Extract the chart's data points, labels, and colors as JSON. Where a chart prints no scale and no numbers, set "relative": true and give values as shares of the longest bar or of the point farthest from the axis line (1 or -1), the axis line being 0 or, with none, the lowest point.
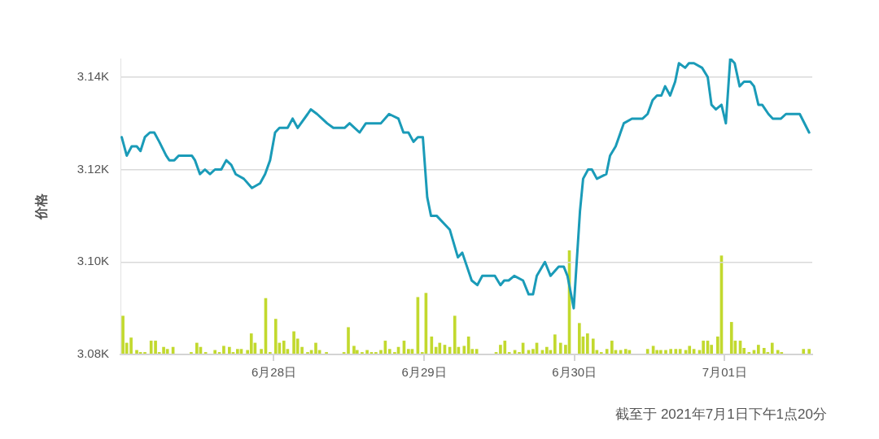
{
  "chart_data": [
    {
      "type": "line",
      "ylabel": "价格",
      "annotations": [
        "截至于 2021年7月1日下午1点20分"
      ],
      "marker": "none",
      "grid": "y",
      "xlim": [
        "2021-06-26T23:30",
        "2021-07-01T14:00"
      ],
      "xticks": [
        {
          "value": "2021-06-28",
          "label": "6月28日"
        },
        {
          "value": "2021-06-29",
          "label": "6月29日"
        },
        {
          "value": "2021-06-30",
          "label": "6月30日"
        },
        {
          "value": "2021-07-01",
          "label": "7月01日"
        }
      ],
      "ylim": [
        3080,
        3144
      ],
      "yticks": [
        {
          "value": 3080,
          "label": "3.08K"
        },
        {
          "value": 3100,
          "label": "3.10K"
        },
        {
          "value": 3120,
          "label": "3.12K"
        },
        {
          "value": 3140,
          "label": "3.14K"
        }
      ],
      "x": [
        "2021-06-26T23:42",
        "2021-06-27T00:30",
        "2021-06-27T01:18",
        "2021-06-27T02:06",
        "2021-06-27T02:42",
        "2021-06-27T03:24",
        "2021-06-27T04:12",
        "2021-06-27T04:54",
        "2021-06-27T05:42",
        "2021-06-27T06:48",
        "2021-06-27T07:18",
        "2021-06-27T08:06",
        "2021-06-27T08:48",
        "2021-06-27T10:06",
        "2021-06-27T10:54",
        "2021-06-27T11:24",
        "2021-06-27T12:12",
        "2021-06-27T13:00",
        "2021-06-27T13:48",
        "2021-06-27T14:36",
        "2021-06-27T15:36",
        "2021-06-27T16:24",
        "2021-06-27T17:12",
        "2021-06-27T17:54",
        "2021-06-27T19:12",
        "2021-06-27T20:30",
        "2021-06-27T21:48",
        "2021-06-27T22:36",
        "2021-06-27T23:24",
        "2021-06-28T00:12",
        "2021-06-28T00:54",
        "2021-06-28T02:12",
        "2021-06-28T03:00",
        "2021-06-28T03:48",
        "2021-06-28T05:24",
        "2021-06-28T05:54",
        "2021-06-28T06:54",
        "2021-06-28T07:42",
        "2021-06-28T08:30",
        "2021-06-28T09:30",
        "2021-06-28T11:18",
        "2021-06-28T12:06",
        "2021-06-28T12:54",
        "2021-06-28T13:42",
        "2021-06-28T14:42",
        "2021-06-28T16:00",
        "2021-06-28T17:06",
        "2021-06-28T18:24",
        "2021-06-28T19:54",
        "2021-06-28T20:42",
        "2021-06-28T21:30",
        "2021-06-28T22:18",
        "2021-06-28T23:00",
        "2021-06-28T23:48",
        "2021-06-29T00:30",
        "2021-06-29T01:06",
        "2021-06-29T02:00",
        "2021-06-29T04:06",
        "2021-06-29T05:24",
        "2021-06-29T06:06",
        "2021-06-29T07:36",
        "2021-06-29T08:30",
        "2021-06-29T09:18",
        "2021-06-29T11:18",
        "2021-06-29T12:12",
        "2021-06-29T12:48",
        "2021-06-29T13:30",
        "2021-06-29T14:24",
        "2021-06-29T15:48",
        "2021-06-29T16:42",
        "2021-06-29T17:24",
        "2021-06-29T18:00",
        "2021-06-29T19:18",
        "2021-06-29T20:12",
        "2021-06-29T21:30",
        "2021-06-29T22:18",
        "2021-06-29T22:54",
        "2021-06-29T23:54",
        "2021-06-30T00:54",
        "2021-06-30T01:24",
        "2021-06-30T02:12",
        "2021-06-30T02:48",
        "2021-06-30T03:36",
        "2021-06-30T05:06",
        "2021-06-30T05:42",
        "2021-06-30T06:36",
        "2021-06-30T07:54",
        "2021-06-30T09:12",
        "2021-06-30T10:54",
        "2021-06-30T11:42",
        "2021-06-30T12:30",
        "2021-06-30T13:12",
        "2021-06-30T13:54",
        "2021-06-30T14:30",
        "2021-06-30T15:18",
        "2021-06-30T16:06",
        "2021-06-30T16:42",
        "2021-06-30T17:42",
        "2021-06-30T18:18",
        "2021-06-30T19:06",
        "2021-06-30T20:24",
        "2021-06-30T21:18",
        "2021-06-30T21:54",
        "2021-06-30T22:36",
        "2021-06-30T23:30",
        "2021-07-01T00:12",
        "2021-07-01T00:54",
        "2021-07-01T01:36",
        "2021-07-01T02:24",
        "2021-07-01T03:06",
        "2021-07-01T04:06",
        "2021-07-01T04:42",
        "2021-07-01T05:24",
        "2021-07-01T06:00",
        "2021-07-01T07:00",
        "2021-07-01T07:42",
        "2021-07-01T08:18",
        "2021-07-01T09:00",
        "2021-07-01T09:48",
        "2021-07-01T12:00",
        "2021-07-01T13:30"
      ],
      "series": [
        {
          "color": "#1a9bb8",
          "values": [
            3127,
            3123,
            3125,
            3125,
            3124,
            3127,
            3128,
            3128,
            3126,
            3123,
            3122,
            3122,
            3123,
            3123,
            3123,
            3122,
            3119,
            3120,
            3119,
            3120,
            3120,
            3122,
            3121,
            3119,
            3118,
            3116,
            3117,
            3119,
            3122,
            3128,
            3129,
            3129,
            3131,
            3129,
            3132,
            3133,
            3132,
            3131,
            3130,
            3129,
            3129,
            3130,
            3129,
            3128,
            3130,
            3130,
            3130,
            3132,
            3131,
            3128,
            3128,
            3126,
            3127,
            3127,
            3114,
            3110,
            3110,
            3107,
            3101,
            3102,
            3096,
            3095,
            3097,
            3097,
            3095,
            3096,
            3096,
            3097,
            3096,
            3093,
            3093,
            3097,
            3100,
            3097,
            3099,
            3099,
            3097,
            3090,
            3111,
            3118,
            3120,
            3120,
            3118,
            3119,
            3123,
            3125,
            3130,
            3131,
            3131,
            3132,
            3135,
            3136,
            3136,
            3138,
            3136,
            3139,
            3143,
            3142,
            3143,
            3143,
            3142,
            3140,
            3134,
            3133,
            3134,
            3130,
            3144,
            3143,
            3138,
            3139,
            3139,
            3138,
            3134,
            3134,
            3132,
            3131,
            3131,
            3131,
            3132,
            3132,
            3128
          ]
        }
      ]
    },
    {
      "type": "bar",
      "relative": true,
      "xlim": [
        "2021-06-26T23:30",
        "2021-07-01T14:00"
      ],
      "color": "#c2d92e",
      "x": [
        "2021-06-26T23:54",
        "2021-06-27T00:30",
        "2021-06-27T01:12",
        "2021-06-27T02:06",
        "2021-06-27T02:42",
        "2021-06-27T03:24",
        "2021-06-27T04:24",
        "2021-06-27T05:06",
        "2021-06-27T05:42",
        "2021-06-27T06:24",
        "2021-06-27T07:00",
        "2021-06-27T07:54",
        "2021-06-27T10:48",
        "2021-06-27T11:42",
        "2021-06-27T12:18",
        "2021-06-27T13:06",
        "2021-06-27T14:36",
        "2021-06-27T15:18",
        "2021-06-27T16:00",
        "2021-06-27T16:54",
        "2021-06-27T17:30",
        "2021-06-27T18:12",
        "2021-06-27T18:48",
        "2021-06-27T19:48",
        "2021-06-27T20:24",
        "2021-06-27T21:00",
        "2021-06-27T22:00",
        "2021-06-27T22:42",
        "2021-06-27T23:24",
        "2021-06-28T00:18",
        "2021-06-28T00:54",
        "2021-06-28T01:36",
        "2021-06-28T02:12",
        "2021-06-28T03:12",
        "2021-06-28T03:48",
        "2021-06-28T04:30",
        "2021-06-28T05:24",
        "2021-06-28T06:00",
        "2021-06-28T06:42",
        "2021-06-28T07:18",
        "2021-06-28T08:24",
        "2021-06-28T11:12",
        "2021-06-28T11:54",
        "2021-06-28T12:48",
        "2021-06-28T13:18",
        "2021-06-28T14:06",
        "2021-06-28T14:54",
        "2021-06-28T15:36",
        "2021-06-28T16:18",
        "2021-06-28T17:06",
        "2021-06-28T17:48",
        "2021-06-28T18:30",
        "2021-06-28T19:18",
        "2021-06-28T19:54",
        "2021-06-28T20:48",
        "2021-06-28T21:30",
        "2021-06-28T22:06",
        "2021-06-28T23:00",
        "2021-06-28T23:42",
        "2021-06-29T00:18",
        "2021-06-29T01:12",
        "2021-06-29T01:54",
        "2021-06-29T02:30",
        "2021-06-29T03:18",
        "2021-06-29T04:06",
        "2021-06-29T04:54",
        "2021-06-29T05:30",
        "2021-06-29T06:24",
        "2021-06-29T07:06",
        "2021-06-29T07:42",
        "2021-06-29T08:24",
        "2021-06-29T11:30",
        "2021-06-29T12:12",
        "2021-06-29T12:54",
        "2021-06-29T13:36",
        "2021-06-29T14:30",
        "2021-06-29T15:12",
        "2021-06-29T15:48",
        "2021-06-29T16:42",
        "2021-06-29T17:24",
        "2021-06-29T18:00",
        "2021-06-29T18:54",
        "2021-06-29T19:36",
        "2021-06-29T20:12",
        "2021-06-29T20:54",
        "2021-06-29T21:48",
        "2021-06-29T22:36",
        "2021-06-29T23:12",
        "2021-06-30T00:48",
        "2021-06-30T01:24",
        "2021-06-30T02:06",
        "2021-06-30T03:00",
        "2021-06-30T03:36",
        "2021-06-30T04:18",
        "2021-06-30T05:12",
        "2021-06-30T06:00",
        "2021-06-30T06:36",
        "2021-06-30T07:24",
        "2021-06-30T08:12",
        "2021-06-30T08:48",
        "2021-06-30T11:42",
        "2021-06-30T12:36",
        "2021-06-30T13:12",
        "2021-06-30T13:48",
        "2021-06-30T14:36",
        "2021-06-30T15:24",
        "2021-06-30T16:12",
        "2021-06-30T16:54",
        "2021-06-30T17:48",
        "2021-06-30T18:24",
        "2021-06-30T19:06",
        "2021-06-30T20:00",
        "2021-06-30T20:36",
        "2021-06-30T21:18",
        "2021-06-30T21:54",
        "2021-06-30T22:54",
        "2021-06-30T23:30",
        "2021-07-01T01:06",
        "2021-07-01T01:42",
        "2021-07-01T02:30",
        "2021-07-01T03:06",
        "2021-07-01T03:54",
        "2021-07-01T04:42",
        "2021-07-01T05:24",
        "2021-07-01T06:18",
        "2021-07-01T06:54",
        "2021-07-01T07:36",
        "2021-07-01T08:30",
        "2021-07-01T09:06",
        "2021-07-01T12:36",
        "2021-07-01T13:30"
      ],
      "values": [
        0.37,
        0.11,
        0.16,
        0.04,
        0.02,
        0.02,
        0.13,
        0.13,
        0.02,
        0.07,
        0.05,
        0.07,
        0.02,
        0.11,
        0.07,
        0.02,
        0.04,
        0.02,
        0.08,
        0.07,
        0.02,
        0.05,
        0.05,
        0.04,
        0.2,
        0.11,
        0.05,
        0.54,
        0.02,
        0.34,
        0.11,
        0.13,
        0.05,
        0.22,
        0.15,
        0.07,
        0.02,
        0.04,
        0.11,
        0.04,
        0.02,
        0.02,
        0.26,
        0.08,
        0.04,
        0.02,
        0.04,
        0.02,
        0.02,
        0.04,
        0.13,
        0.05,
        0.02,
        0.07,
        0.13,
        0.05,
        0.05,
        0.55,
        0.02,
        0.59,
        0.17,
        0.07,
        0.11,
        0.09,
        0.07,
        0.37,
        0.07,
        0.08,
        0.17,
        0.05,
        0.05,
        0.02,
        0.09,
        0.13,
        0.02,
        0.04,
        0.02,
        0.11,
        0.04,
        0.05,
        0.11,
        0.04,
        0.07,
        0.04,
        0.19,
        0.11,
        0.09,
        1,
        0.3,
        0.17,
        0.2,
        0.15,
        0.04,
        0.02,
        0.05,
        0.13,
        0.04,
        0.04,
        0.05,
        0.04,
        0.05,
        0.08,
        0.04,
        0.04,
        0.04,
        0.05,
        0.05,
        0.05,
        0.04,
        0.08,
        0.05,
        0.04,
        0.13,
        0.13,
        0.09,
        0.17,
        0.95,
        0.31,
        0.13,
        0.13,
        0.06,
        0.02,
        0.04,
        0.09,
        0.06,
        0.02,
        0.11,
        0.04,
        0.02,
        0.05,
        0.05
      ]
    }
  ]
}
